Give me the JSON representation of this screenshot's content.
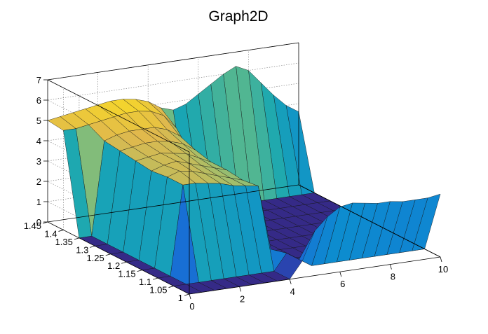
{
  "chart_data": {
    "type": "surface",
    "title": "Graph2D",
    "xlabel": "",
    "ylabel": "",
    "zlabel": "",
    "xlim": [
      0,
      10
    ],
    "ylim": [
      1,
      1.45
    ],
    "zlim": [
      0,
      7
    ],
    "x_ticks": [
      "0",
      "2",
      "4",
      "6",
      "8",
      "10"
    ],
    "y_ticks": [
      "1",
      "1.05",
      "1.1",
      "1.15",
      "1.2",
      "1.25",
      "1.3",
      "1.35",
      "1.4",
      "1.45"
    ],
    "z_ticks": [
      "0",
      "1",
      "2",
      "3",
      "4",
      "5",
      "6",
      "7"
    ],
    "grid": true,
    "colormap": [
      "#352a87",
      "#1f5ed6",
      "#0d8bd0",
      "#1aa7b2",
      "#5bb98c",
      "#a5be6a",
      "#e1b94c",
      "#f9dc24"
    ],
    "grid_x": [
      0,
      0.5,
      1,
      1.5,
      2,
      2.5,
      3,
      3.5,
      4,
      4.5,
      5,
      5.5,
      6,
      6.5,
      7,
      7.5,
      8,
      8.5,
      9,
      9.5,
      10
    ],
    "grid_y": [
      1,
      1.05,
      1.1,
      1.15,
      1.2,
      1.25,
      1.3,
      1.35,
      1.4,
      1.45
    ],
    "z": [
      [
        0,
        0,
        0,
        0,
        0,
        0,
        0,
        0,
        0,
        0.8,
        2.2,
        2.8,
        3.2,
        3.3,
        3.2,
        3.1,
        3.1,
        3.0,
        3.0,
        3.0,
        3.1
      ],
      [
        0,
        0,
        0,
        0,
        0,
        0,
        0,
        0,
        0,
        0.8,
        0.4,
        0,
        0,
        0,
        0,
        0,
        0,
        0,
        0,
        0,
        0
      ],
      [
        0,
        0,
        4.4,
        4.4,
        4.3,
        4.2,
        4.0,
        3.9,
        3.8,
        0.6,
        0,
        0,
        0,
        0,
        0,
        0,
        0,
        0,
        0,
        0,
        0
      ],
      [
        0,
        0,
        4.4,
        4.6,
        4.5,
        4.3,
        4.1,
        3.9,
        3.7,
        0.7,
        0,
        0,
        0,
        0,
        0,
        0,
        0,
        0,
        0,
        0,
        0
      ],
      [
        0,
        0,
        4.3,
        4.5,
        4.6,
        4.4,
        4.2,
        4.0,
        3.8,
        1.0,
        0,
        0,
        0,
        0,
        0,
        0,
        0,
        0,
        0,
        0,
        0
      ],
      [
        0,
        0,
        4.4,
        4.5,
        4.6,
        4.5,
        4.4,
        4.1,
        3.8,
        1.5,
        0,
        0,
        0,
        0,
        0,
        0,
        0,
        0,
        0,
        0,
        0
      ],
      [
        0,
        0,
        4.5,
        4.6,
        4.7,
        4.7,
        4.6,
        4.4,
        4.0,
        2.3,
        0,
        0,
        0,
        0,
        0,
        0,
        0,
        0,
        0,
        0,
        0
      ],
      [
        0,
        0,
        4.6,
        4.8,
        4.9,
        4.9,
        4.9,
        4.7,
        4.3,
        3.2,
        0,
        0,
        0,
        0,
        0,
        0,
        0,
        0,
        0,
        0,
        0
      ],
      [
        4.9,
        4.9,
        5.0,
        5.1,
        5.2,
        5.3,
        5.3,
        5.2,
        4.9,
        4.2,
        0,
        0,
        0,
        0,
        0,
        0,
        0,
        0,
        0,
        0,
        0
      ],
      [
        5.0,
        5.1,
        5.2,
        5.3,
        5.4,
        5.5,
        5.5,
        5.4,
        5.2,
        4.8,
        4.6,
        4.8,
        5.2,
        5.6,
        6.0,
        6.3,
        6.0,
        5.3,
        4.6,
        4.0,
        3.6
      ]
    ]
  }
}
